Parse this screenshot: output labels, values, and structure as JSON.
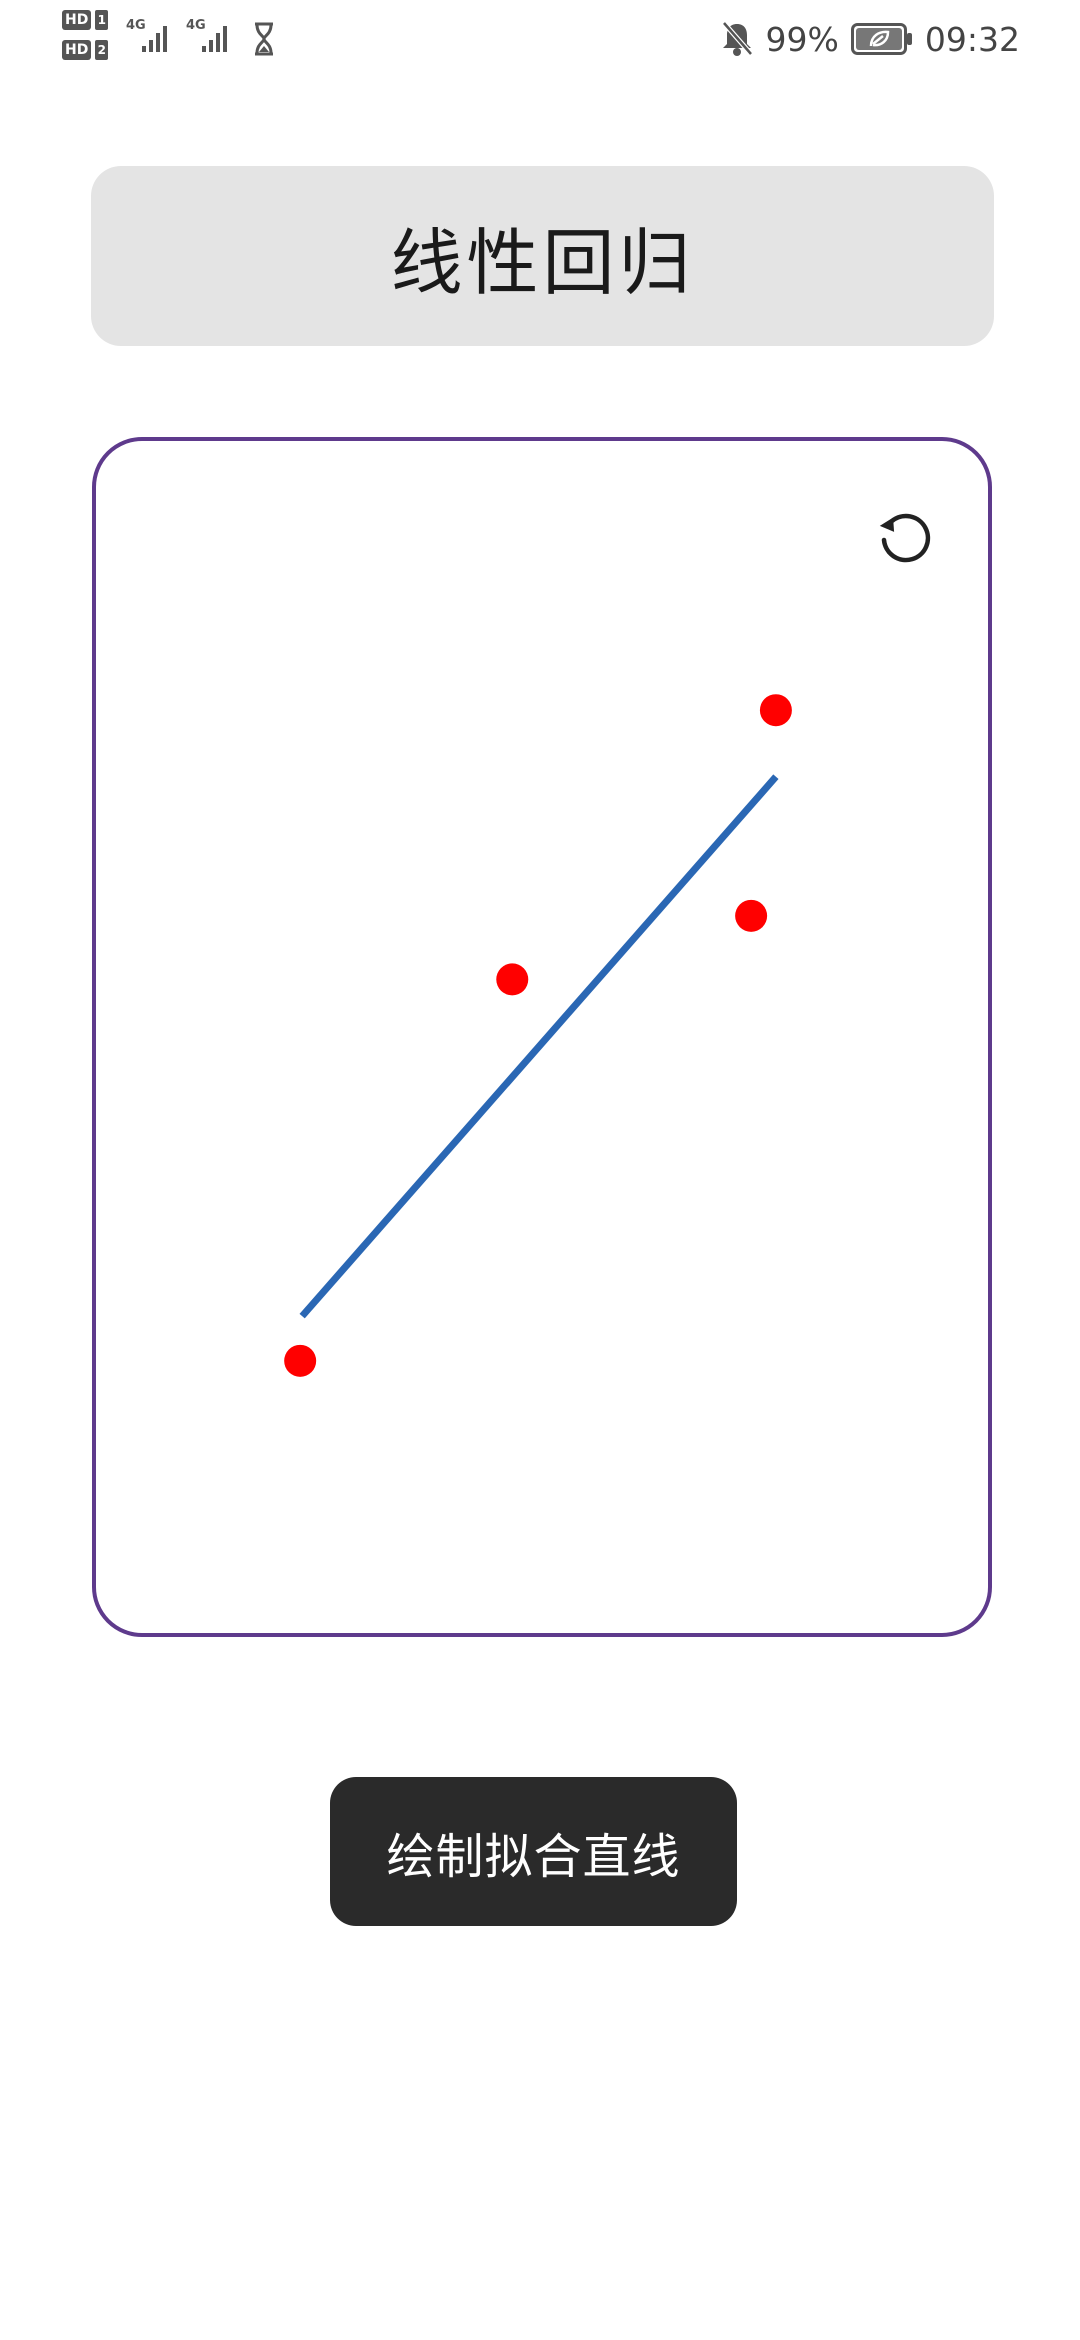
{
  "status_bar": {
    "sim1_badge": "HD",
    "sim1_num": "1",
    "sim2_badge": "HD",
    "sim2_num": "2",
    "net1": "4G",
    "net2": "4G",
    "battery_percent": "99%",
    "time": "09:32"
  },
  "title": "线性回归",
  "canvas": {
    "refresh_icon": "refresh-icon",
    "colors": {
      "border": "#5e3a8c",
      "point": "#ff0000",
      "line": "#2a67b4"
    }
  },
  "chart_data": {
    "type": "scatter",
    "title": "",
    "xlabel": "",
    "ylabel": "",
    "xlim": [
      0,
      900
    ],
    "ylim": [
      0,
      1200
    ],
    "points": [
      {
        "x": 206,
        "y": 274
      },
      {
        "x": 420,
        "y": 658
      },
      {
        "x": 661,
        "y": 722
      },
      {
        "x": 686,
        "y": 929
      }
    ],
    "fit_line": {
      "x": [
        208,
        686
      ],
      "y": [
        319,
        862
      ]
    }
  },
  "button": {
    "label": "绘制拟合直线"
  }
}
